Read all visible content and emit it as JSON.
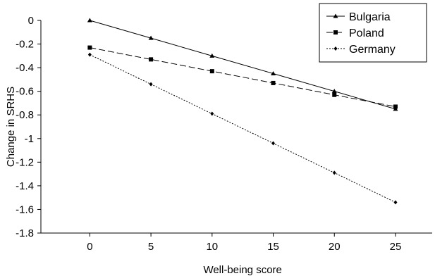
{
  "chart_data": {
    "type": "line",
    "title": "",
    "xlabel": "Well-being score",
    "ylabel": "Change in SRHS",
    "x": [
      0,
      5,
      10,
      15,
      20,
      25
    ],
    "xticks": [
      "0",
      "5",
      "10",
      "15",
      "20",
      "25"
    ],
    "xlim": [
      -4,
      28
    ],
    "ylim": [
      -1.8,
      0
    ],
    "yticks": [
      0,
      -0.2,
      -0.4,
      -0.6,
      -0.8,
      -1,
      -1.2,
      -1.4,
      -1.6,
      -1.8
    ],
    "ytick_labels": [
      "0",
      "-0.2",
      "-0.4",
      "-0.6",
      "-0.8",
      "-1",
      "-1.2",
      "-1.4",
      "-1.6",
      "-1.8"
    ],
    "grid": false,
    "legend_position": "top-right",
    "series": [
      {
        "name": "Bulgaria",
        "values": [
          0,
          -0.15,
          -0.3,
          -0.45,
          -0.6,
          -0.75
        ],
        "marker": "triangle",
        "line_style": "solid",
        "color": "#000000"
      },
      {
        "name": "Poland",
        "values": [
          -0.23,
          -0.33,
          -0.43,
          -0.53,
          -0.63,
          -0.73
        ],
        "marker": "square",
        "line_style": "dashed",
        "color": "#000000"
      },
      {
        "name": "Germany",
        "values": [
          -0.29,
          -0.54,
          -0.79,
          -1.04,
          -1.29,
          -1.54
        ],
        "marker": "diamond",
        "line_style": "dotted",
        "color": "#000000"
      }
    ]
  }
}
